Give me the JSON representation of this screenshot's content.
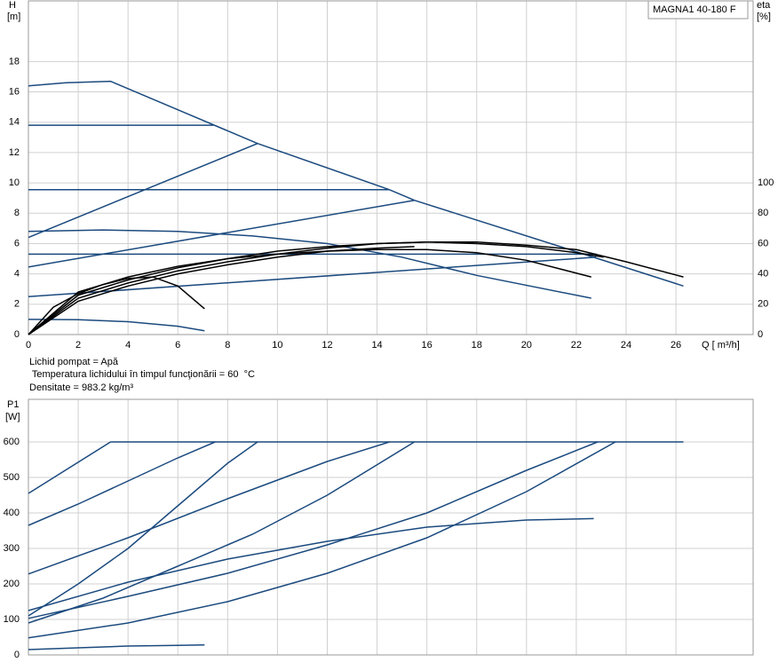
{
  "chart_data": [
    {
      "type": "line",
      "title": "MAGNA1 40-180 F",
      "ylabel": "H",
      "yunit": "[m]",
      "y2label": "eta",
      "y2unit": "[%]",
      "xlabel": "Q [ m³/h]",
      "annotations": [
        "Lichid pompat = Apă",
        " Temperatura lichidului în timpul funcţionării = 60  °C",
        "Densitate = 983.2  kg/m³"
      ],
      "xlim": [
        0,
        29.1
      ],
      "xticks": [
        0,
        2,
        4,
        6,
        8,
        10,
        12,
        14,
        16,
        18,
        20,
        22,
        24,
        26
      ],
      "ylim": [
        0,
        22
      ],
      "yticks": [
        0,
        2,
        4,
        6,
        8,
        10,
        12,
        14,
        16,
        18
      ],
      "y2lim": [
        0,
        220
      ],
      "y2ticks": [
        0,
        20,
        40,
        60,
        80,
        100
      ],
      "grid": true,
      "series": [
        {
          "color": "#1b4a7e",
          "x": [
            0,
            1.5,
            3.3,
            9.2,
            14.5,
            15.5,
            22.5,
            26.3
          ],
          "values": [
            16.4,
            16.6,
            16.7,
            12.6,
            9.55,
            8.85,
            5.2,
            3.2
          ]
        },
        {
          "color": "#1b4a7e",
          "x": [
            0,
            7.43
          ],
          "values": [
            13.8,
            13.8
          ]
        },
        {
          "color": "#1b4a7e",
          "x": [
            0,
            14.5
          ],
          "values": [
            9.55,
            9.55
          ]
        },
        {
          "color": "#1b4a7e",
          "x": [
            0,
            22.8
          ],
          "values": [
            5.3,
            5.3
          ]
        },
        {
          "color": "#1b4a7e",
          "x": [
            0,
            9.2
          ],
          "values": [
            6.4,
            12.6
          ]
        },
        {
          "color": "#1b4a7e",
          "x": [
            0,
            15.5
          ],
          "values": [
            4.45,
            8.85
          ]
        },
        {
          "color": "#1b4a7e",
          "x": [
            0,
            22.8
          ],
          "values": [
            2.5,
            5.1
          ]
        },
        {
          "color": "#1b4a7e",
          "x": [
            0,
            3,
            6,
            9,
            12,
            15,
            18,
            22.6
          ],
          "values": [
            6.8,
            6.9,
            6.8,
            6.5,
            6.0,
            5.1,
            3.9,
            2.4
          ]
        },
        {
          "color": "#1b4a7e",
          "x": [
            0,
            2,
            4,
            6,
            7.07
          ],
          "values": [
            1.0,
            0.98,
            0.85,
            0.55,
            0.25
          ]
        },
        {
          "color": "#000000",
          "axis": "y2",
          "x": [
            0,
            1,
            2,
            3,
            4,
            5,
            6,
            7.07
          ],
          "values": [
            0,
            18,
            27,
            33,
            37,
            38,
            32,
            17
          ]
        },
        {
          "color": "#000000",
          "axis": "y2",
          "x": [
            0,
            2,
            4,
            6,
            8,
            10,
            12,
            14,
            16,
            18,
            20,
            22.6
          ],
          "values": [
            0,
            28,
            38,
            45,
            50,
            53,
            55,
            56,
            56,
            54,
            49,
            38
          ]
        },
        {
          "color": "#000000",
          "axis": "y2",
          "x": [
            0,
            2,
            4,
            6,
            8,
            10,
            12,
            14,
            16,
            18,
            20,
            22,
            24,
            26.3
          ],
          "values": [
            0,
            24,
            34,
            42,
            48,
            53,
            57,
            60,
            61,
            61,
            59,
            56,
            48,
            38
          ]
        },
        {
          "color": "#000000",
          "axis": "y2",
          "x": [
            0,
            2,
            4,
            6,
            8,
            10,
            12,
            14,
            16,
            18,
            20,
            22,
            23.1
          ],
          "values": [
            0,
            26,
            36,
            44,
            50,
            55,
            58,
            60,
            61,
            60,
            58,
            54,
            51
          ]
        },
        {
          "color": "#000000",
          "axis": "y2",
          "x": [
            0,
            2,
            4,
            6,
            8,
            10,
            12,
            14,
            15.5
          ],
          "values": [
            0,
            22,
            32,
            40,
            46,
            51,
            55,
            57,
            58
          ]
        }
      ]
    },
    {
      "type": "line",
      "ylabel": "P1",
      "yunit": "[W]",
      "xlim": [
        0,
        29.1
      ],
      "xticks": [
        0,
        2,
        4,
        6,
        8,
        10,
        12,
        14,
        16,
        18,
        20,
        22,
        24,
        26
      ],
      "ylim": [
        0,
        720
      ],
      "yticks": [
        0,
        100,
        200,
        300,
        400,
        500,
        600
      ],
      "grid": true,
      "series": [
        {
          "color": "#1b4a7e",
          "x": [
            3.3,
            26.3
          ],
          "values": [
            600,
            600
          ]
        },
        {
          "color": "#1b4a7e",
          "x": [
            0,
            3.3
          ],
          "values": [
            455,
            600
          ]
        },
        {
          "color": "#1b4a7e",
          "x": [
            0,
            2,
            4,
            6,
            7.5
          ],
          "values": [
            365,
            425,
            490,
            555,
            600
          ]
        },
        {
          "color": "#1b4a7e",
          "x": [
            0,
            2,
            4,
            6,
            8,
            9.2
          ],
          "values": [
            110,
            200,
            300,
            420,
            540,
            600
          ]
        },
        {
          "color": "#1b4a7e",
          "x": [
            0,
            4,
            8,
            12,
            14.5
          ],
          "values": [
            228,
            330,
            440,
            545,
            600
          ]
        },
        {
          "color": "#1b4a7e",
          "x": [
            0,
            3,
            6,
            9,
            12,
            15.5
          ],
          "values": [
            90,
            160,
            250,
            340,
            450,
            600
          ]
        },
        {
          "color": "#1b4a7e",
          "x": [
            0,
            4,
            8,
            12,
            16,
            20,
            22.86
          ],
          "values": [
            103,
            165,
            230,
            310,
            400,
            520,
            600
          ]
        },
        {
          "color": "#1b4a7e",
          "x": [
            0,
            4,
            8,
            12,
            16,
            20,
            23.57
          ],
          "values": [
            48,
            90,
            150,
            230,
            330,
            460,
            600
          ]
        },
        {
          "color": "#1b4a7e",
          "x": [
            0,
            4,
            8,
            12,
            16,
            20,
            22.7
          ],
          "values": [
            125,
            205,
            270,
            320,
            360,
            380,
            384
          ]
        },
        {
          "color": "#1b4a7e",
          "x": [
            0,
            2,
            4,
            6,
            7.07
          ],
          "values": [
            15,
            20,
            25,
            27,
            28
          ]
        }
      ]
    }
  ]
}
